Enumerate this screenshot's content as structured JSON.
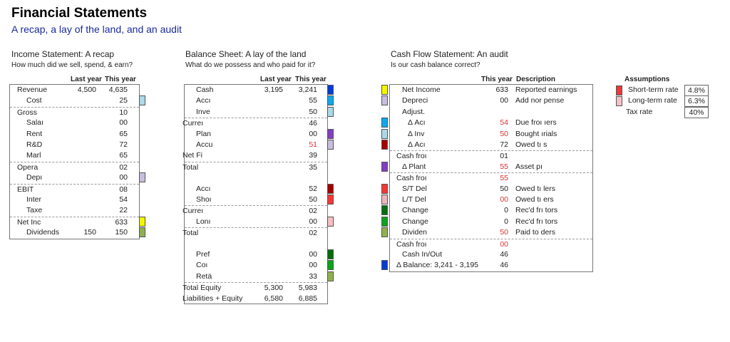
{
  "title": "Financial Statements",
  "subtitle": "A recap, a lay of the land, and an audit",
  "income": {
    "title": "Income Statement:  A recap",
    "subtitle": "How much did we sell, spend, & earn?",
    "col_last": "Last year",
    "col_this": "This year",
    "rows": [
      {
        "label": "Revenue",
        "indent": 0,
        "last": "4,500",
        "this": "4,635"
      },
      {
        "label": "Cost",
        "indent": 1,
        "this": "25",
        "swatch": "#add8e6"
      },
      {
        "label": "Gross",
        "indent": 0,
        "this": "10",
        "sep": true
      },
      {
        "label": "Salaı",
        "indent": 1,
        "this": "00"
      },
      {
        "label": "Rent",
        "indent": 1,
        "this": "65"
      },
      {
        "label": "R&D",
        "indent": 1,
        "this": "72"
      },
      {
        "label": "Marl",
        "indent": 1,
        "this": "65"
      },
      {
        "label": "Opera",
        "indent": 0,
        "this": "02",
        "sep": true
      },
      {
        "label": "Depı",
        "indent": 1,
        "this": "00",
        "swatch": "#c8bedc"
      },
      {
        "label": "EBIT",
        "indent": 0,
        "this": "08",
        "sep": true
      },
      {
        "label": "Inter",
        "indent": 1,
        "this": "54"
      },
      {
        "label": "Taxe",
        "indent": 1,
        "this": "22"
      },
      {
        "label": "Net Inc",
        "indent": 0,
        "this": "633",
        "sep": true,
        "swatch": "#f5f500"
      },
      {
        "label": "Dividends",
        "indent": 1,
        "last": "150",
        "this": "150",
        "swatch": "#8fb050"
      }
    ]
  },
  "balance": {
    "title": "Balance Sheet:  A lay of the land",
    "subtitle": "What do we possess and who paid for it?",
    "col_last": "Last year",
    "col_this": "This year",
    "rows": [
      {
        "label": "Cash",
        "indent": 1,
        "last": "3,195",
        "this": "3,241",
        "swatch": "#0a3ccc"
      },
      {
        "label": "Accı",
        "indent": 1,
        "this": "55",
        "swatch": "#10a8ea"
      },
      {
        "label": "Inve",
        "indent": 1,
        "this": "50",
        "swatch": "#add8e6"
      },
      {
        "label": "Curreı",
        "indent": 0,
        "this": "46",
        "sep": true
      },
      {
        "label": "Plan",
        "indent": 1,
        "this": "00",
        "swatch": "#8040c0"
      },
      {
        "label": "Accu",
        "indent": 1,
        "this": "51",
        "red": true,
        "swatch": "#c8bedc"
      },
      {
        "label": "Net Fi",
        "indent": 0,
        "this": "39"
      },
      {
        "label": "Total",
        "indent": 0,
        "this": "35",
        "sep": true
      },
      {
        "label": "",
        "indent": 0,
        "this": ""
      },
      {
        "label": "Accı",
        "indent": 1,
        "this": "52",
        "swatch": "#a00000"
      },
      {
        "label": "Shoı",
        "indent": 1,
        "this": "50",
        "swatch": "#f03838"
      },
      {
        "label": "Curreı",
        "indent": 0,
        "this": "02",
        "sep": true
      },
      {
        "label": "Lonı",
        "indent": 1,
        "this": "00",
        "swatch": "#f4c0c4"
      },
      {
        "label": "Total",
        "indent": 0,
        "this": "02",
        "sep": true
      },
      {
        "label": "",
        "indent": 0,
        "this": ""
      },
      {
        "label": "Pref",
        "indent": 1,
        "this": "00",
        "swatch": "#0a6a10"
      },
      {
        "label": "Coı",
        "indent": 1,
        "this": "00",
        "swatch": "#10a020"
      },
      {
        "label": "Retä",
        "indent": 1,
        "this": "33",
        "swatch": "#90b050"
      },
      {
        "label": "Total Equity",
        "indent": 0,
        "last": "5,300",
        "this": "5,983",
        "sep": true
      },
      {
        "label": "Liabilities + Equity",
        "indent": 0,
        "last": "6,580",
        "this": "6,885"
      }
    ]
  },
  "cashflow": {
    "title": "Cash Flow Statement:  An audit",
    "subtitle": "Is our cash balance correct?",
    "col_this": "This year",
    "col_desc": "Description",
    "rows": [
      {
        "label": "Net Income",
        "indent": 1,
        "this": "633",
        "desc": "Reported earnings",
        "swatch": "#f5f500"
      },
      {
        "label": "Depreci",
        "indent": 1,
        "this": "00",
        "desc": "Add nor          pense",
        "swatch": "#c8bedc"
      },
      {
        "label": "Adjust.",
        "indent": 1,
        "this": ""
      },
      {
        "label": "Δ  Acı",
        "indent": 2,
        "this": "54",
        "red": true,
        "desc": "Due froı          ıers",
        "swatch": "#10a8ea"
      },
      {
        "label": "Δ  Inv",
        "indent": 2,
        "this": "50",
        "red": true,
        "desc": "Bought           ırials",
        "swatch": "#add8e6"
      },
      {
        "label": "Δ  Acı",
        "indent": 2,
        "this": "72",
        "desc": "Owed tı           s",
        "swatch": "#a00000"
      },
      {
        "label": "Cash froı",
        "indent": 0,
        "this": "01",
        "sep": true
      },
      {
        "label": "Δ Plant",
        "indent": 1,
        "this": "55",
        "red": true,
        "desc": "Asset pı",
        "swatch": "#8040c0"
      },
      {
        "label": "Cash froı",
        "indent": 0,
        "this": "55",
        "red": true,
        "sep": true
      },
      {
        "label": "S/T Del",
        "indent": 1,
        "this": "50",
        "desc": "Owed tı          lers",
        "swatch": "#f03838"
      },
      {
        "label": "L/T Del",
        "indent": 1,
        "this": "00",
        "red": true,
        "desc": "Owed tı          ers",
        "swatch": "#e8b8bc"
      },
      {
        "label": "Change",
        "indent": 1,
        "this": "0",
        "desc": "Rec'd frı          tors",
        "swatch": "#0a6a10"
      },
      {
        "label": "Change",
        "indent": 1,
        "this": "0",
        "desc": "Rec'd frı          tors",
        "swatch": "#10a020"
      },
      {
        "label": "Dividen",
        "indent": 1,
        "this": "50",
        "red": true,
        "desc": "Paid to           ders",
        "swatch": "#90b050"
      },
      {
        "label": "Cash froı",
        "indent": 0,
        "this": "00",
        "red": true,
        "sep": true
      },
      {
        "label": "Cash In/Out",
        "indent": 1,
        "this": "46"
      },
      {
        "label": "Δ Balance: 3,241 - 3,195",
        "indent": 0,
        "this": "46",
        "swatch": "#0a3ccc"
      }
    ]
  },
  "assumptions": {
    "title": "Assumptions",
    "rows": [
      {
        "label": "Short-term rate",
        "value": "4.8%",
        "swatch": "#f03838"
      },
      {
        "label": "Long-term rate",
        "value": "6.3%",
        "swatch": "#f4c0c4"
      },
      {
        "label": "Tax rate",
        "value": "40%"
      }
    ]
  }
}
